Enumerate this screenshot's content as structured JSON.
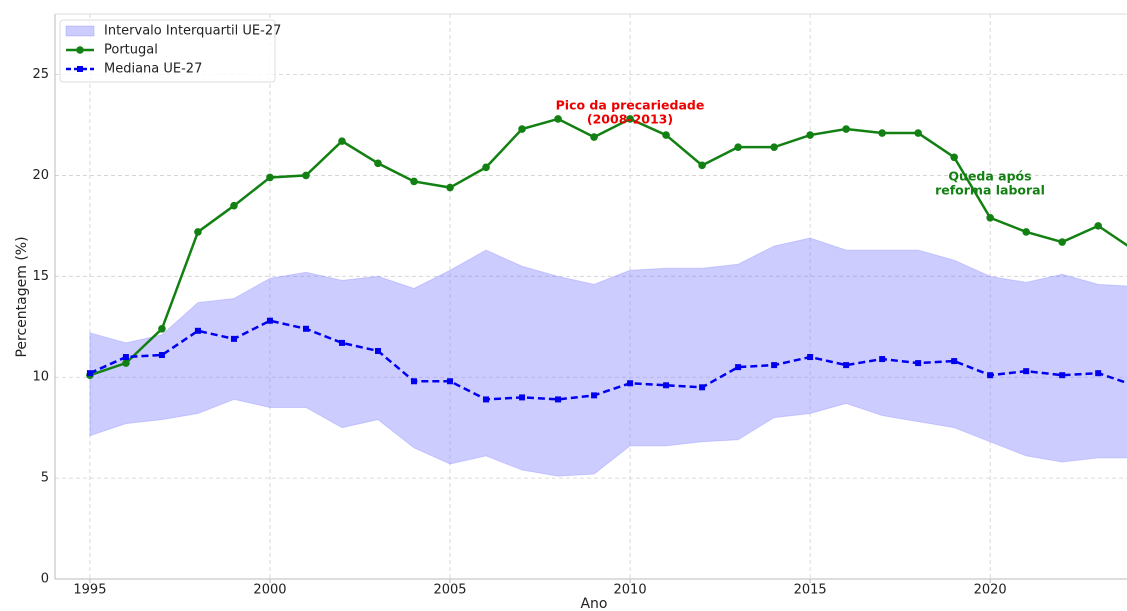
{
  "chart_data": {
    "type": "line",
    "xlabel": "Ano",
    "ylabel": "Percentagem (%)",
    "x": [
      1995,
      1996,
      1997,
      1998,
      1999,
      2000,
      2001,
      2002,
      2003,
      2004,
      2005,
      2006,
      2007,
      2008,
      2009,
      2010,
      2011,
      2012,
      2013,
      2014,
      2015,
      2016,
      2017,
      2018,
      2019,
      2020,
      2021,
      2022,
      2023,
      2024
    ],
    "band": {
      "name": "Intervalo Interquartil UE-27",
      "color": "#8080ff",
      "upper": [
        12.2,
        11.7,
        12.1,
        13.7,
        13.9,
        14.9,
        15.2,
        14.8,
        15.0,
        14.4,
        15.3,
        16.3,
        15.5,
        15.0,
        14.6,
        15.3,
        15.4,
        15.4,
        15.6,
        16.5,
        16.9,
        16.3,
        16.3,
        16.3,
        15.8,
        15.0,
        14.7,
        15.1,
        14.6,
        14.5
      ],
      "lower": [
        7.1,
        7.7,
        7.9,
        8.2,
        8.9,
        8.5,
        8.5,
        7.5,
        7.9,
        6.5,
        5.7,
        6.1,
        5.4,
        5.1,
        5.2,
        6.6,
        6.6,
        6.8,
        6.9,
        8.0,
        8.2,
        8.7,
        8.1,
        7.8,
        7.5,
        6.8,
        6.1,
        5.8,
        6.0,
        6.0
      ]
    },
    "series": [
      {
        "name": "Portugal",
        "color": "#128012",
        "marker": "circle",
        "dash": false,
        "values": [
          10.1,
          10.7,
          12.4,
          17.2,
          18.5,
          19.9,
          20.0,
          21.7,
          20.6,
          19.7,
          19.4,
          20.4,
          22.3,
          22.8,
          21.9,
          22.8,
          22.0,
          20.5,
          21.4,
          21.4,
          22.0,
          22.3,
          22.1,
          22.1,
          20.9,
          17.9,
          17.2,
          16.7,
          17.5,
          16.3
        ]
      },
      {
        "name": "Mediana UE-27",
        "color": "#0000ee",
        "marker": "square",
        "dash": true,
        "values": [
          10.2,
          11.0,
          11.1,
          12.3,
          11.9,
          12.8,
          12.4,
          11.7,
          11.3,
          9.8,
          9.8,
          8.9,
          9.0,
          8.9,
          9.1,
          9.7,
          9.6,
          9.5,
          10.5,
          10.6,
          11.0,
          10.6,
          10.9,
          10.7,
          10.8,
          10.1,
          10.3,
          10.1,
          10.2,
          9.6
        ]
      }
    ],
    "annotations": [
      {
        "lines": [
          "Pico da precariedade",
          "(2008-2013)"
        ],
        "color": "#ee0000"
      },
      {
        "lines": [
          "Queda após",
          "reforma laboral"
        ],
        "color": "#128012"
      }
    ],
    "xlim": [
      1994.03,
      2023.8
    ],
    "ylim": [
      0,
      28
    ],
    "xticks": [
      1995,
      2000,
      2005,
      2010,
      2015,
      2020
    ],
    "yticks": [
      0,
      5,
      10,
      15,
      20,
      25
    ],
    "grid": true,
    "legend": "upper left"
  }
}
